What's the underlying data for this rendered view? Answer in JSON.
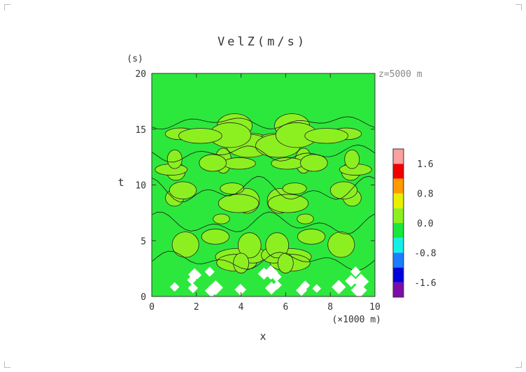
{
  "chart_data": {
    "type": "heatmap",
    "title": "VelZ(m/s)",
    "xlabel": "x",
    "x_unit": "(×1000 m)",
    "ylabel": "t",
    "y_unit": "(s)",
    "annotation": "z=5000 m",
    "xlim": [
      0,
      10
    ],
    "ylim": [
      0,
      20
    ],
    "xticks": [
      "0",
      "2",
      "4",
      "6",
      "8",
      "10"
    ],
    "yticks": [
      "0",
      "5",
      "10",
      "15",
      "20"
    ],
    "colorbar": {
      "bins": [
        {
          "lo": -2.0,
          "hi": -1.6,
          "color": "#7b0da8"
        },
        {
          "lo": -1.6,
          "hi": -1.2,
          "color": "#0000dd"
        },
        {
          "lo": -1.2,
          "hi": -0.8,
          "color": "#1e7cff"
        },
        {
          "lo": -0.8,
          "hi": -0.4,
          "color": "#14f0e8"
        },
        {
          "lo": -0.4,
          "hi": 0.0,
          "color": "#18e83c"
        },
        {
          "lo": 0.0,
          "hi": 0.4,
          "color": "#8cf020"
        },
        {
          "lo": 0.4,
          "hi": 0.8,
          "color": "#e6f000"
        },
        {
          "lo": 0.8,
          "hi": 1.2,
          "color": "#ff9a00"
        },
        {
          "lo": 1.2,
          "hi": 1.6,
          "color": "#f00000"
        },
        {
          "lo": 1.6,
          "hi": 2.0,
          "color": "#ffa0a0"
        }
      ],
      "tick_labels": [
        "1.6",
        "0.8",
        "0.0",
        "-0.8",
        "-1.6"
      ],
      "tick_values": [
        1.6,
        0.8,
        0.0,
        -0.8,
        -1.6
      ]
    },
    "field_summary": {
      "dominant_range": [
        -0.4,
        0.4
      ],
      "notes": "Field mostly within -0.4..0.4 (green/yellow-green bands); blank (white) cells near t < 2.5 s."
    }
  }
}
